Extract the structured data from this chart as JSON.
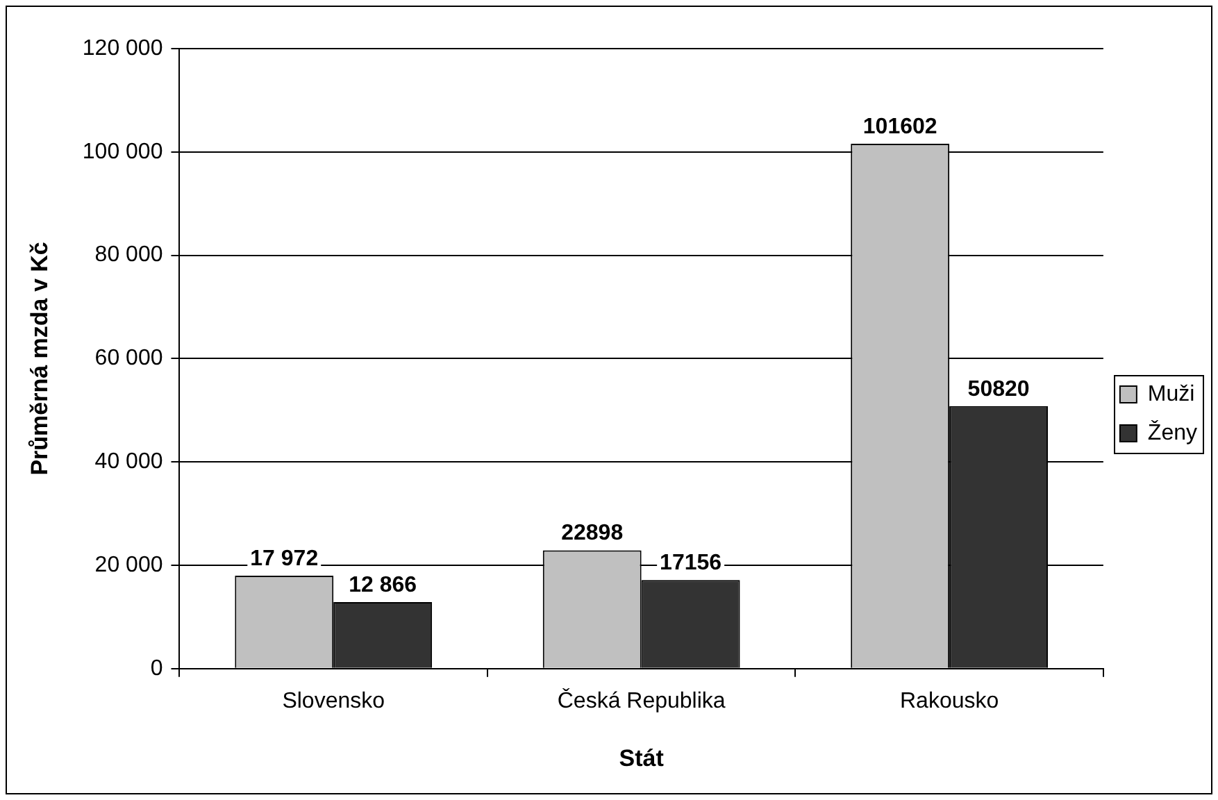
{
  "chart_data": {
    "type": "bar",
    "xlabel": "Stát",
    "ylabel": "Průměrná mzda v Kč",
    "categories": [
      "Slovensko",
      "Česká Republika",
      "Rakousko"
    ],
    "series": [
      {
        "name": "Muži",
        "color": "#c0c0c0",
        "values": [
          17972,
          22898,
          101602
        ],
        "value_labels": [
          "17 972",
          "22898",
          "101602"
        ]
      },
      {
        "name": "Ženy",
        "color": "#333333",
        "values": [
          12866,
          17156,
          50820
        ],
        "value_labels": [
          "12 866",
          "17156",
          "50820"
        ]
      }
    ],
    "ylim": [
      0,
      120000
    ],
    "yticks": [
      0,
      {
        "value": 20000,
        "label": "20 000"
      },
      {
        "value": 40000,
        "label": "40 000"
      },
      {
        "value": 60000,
        "label": "60 000"
      },
      {
        "value": 80000,
        "label": "80 000"
      },
      {
        "value": 100000,
        "label": "100 000"
      },
      {
        "value": 120000,
        "label": "120 000"
      }
    ],
    "grid": "y",
    "legend": "right"
  }
}
